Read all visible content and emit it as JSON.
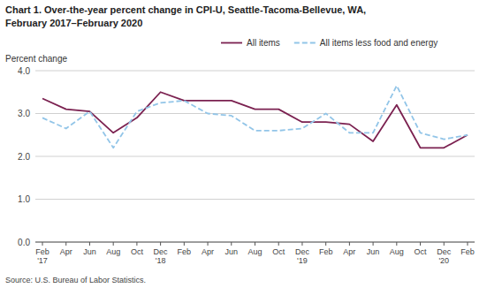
{
  "chart_data": {
    "type": "line",
    "title": "Chart 1. Over-the-year percent change in CPI-U, Seattle-Tacoma-Bellevue, WA,",
    "subtitle": "February 2017–February 2020",
    "y_label": "Percent change",
    "source": "Source: U.S. Bureau of Labor Statistics.",
    "categories": [
      "Feb\n'17",
      "Apr",
      "Jun",
      "Aug",
      "Oct",
      "Dec\n'18",
      "Feb",
      "Apr",
      "Jun",
      "Aug",
      "Oct",
      "Dec\n'19",
      "Feb",
      "Apr",
      "Jun",
      "Aug",
      "Oct",
      "Dec\n'20",
      "Feb"
    ],
    "series": [
      {
        "name": "All items",
        "color": "#7B2150",
        "line_style": "solid",
        "values": [
          3.35,
          3.1,
          3.05,
          2.55,
          2.9,
          3.5,
          3.3,
          3.3,
          3.3,
          3.1,
          3.1,
          2.8,
          2.8,
          2.75,
          2.35,
          3.2,
          2.2,
          2.2,
          2.5
        ]
      },
      {
        "name": "All items less food and energy",
        "color": "#92C5E8",
        "line_style": "dashed",
        "values": [
          2.9,
          2.65,
          3.05,
          2.2,
          3.05,
          3.25,
          3.3,
          3.0,
          2.95,
          2.6,
          2.6,
          2.65,
          3.0,
          2.55,
          2.55,
          3.65,
          2.55,
          2.4,
          2.5
        ]
      }
    ],
    "ylim": [
      0.0,
      4.0
    ],
    "yticks": [
      {
        "value": 0.0,
        "label": "0.0"
      },
      {
        "value": 1.0,
        "label": "1.0"
      },
      {
        "value": 2.0,
        "label": "2.0"
      },
      {
        "value": 3.0,
        "label": "3.0"
      },
      {
        "value": 4.0,
        "label": "4.0"
      }
    ],
    "grid": true,
    "legend": "top"
  }
}
